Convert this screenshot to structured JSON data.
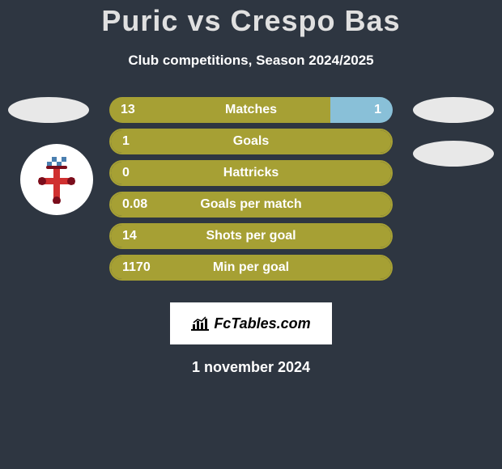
{
  "title": "Puric vs Crespo Bas",
  "subtitle": "Club competitions, Season 2024/2025",
  "date": "1 november 2024",
  "logo_text": "FcTables.com",
  "colors": {
    "background": "#2e3641",
    "left_player": "#a6a034",
    "right_player": "#89c0d8",
    "ellipse": "#e8e8e8",
    "text": "#ffffff",
    "logo_bg": "#ffffff"
  },
  "badge": {
    "cross_color": "#d03030",
    "chequer_colors": [
      "#4a7fb0",
      "#ffffff"
    ],
    "outline": "#7a0d1c"
  },
  "stats": [
    {
      "label": "Matches",
      "left_val": "13",
      "right_val": "1",
      "left_pct": 78,
      "right_pct": 22
    },
    {
      "label": "Goals",
      "left_val": "1",
      "right_val": "",
      "left_pct": 100,
      "right_pct": 0
    },
    {
      "label": "Hattricks",
      "left_val": "0",
      "right_val": "",
      "left_pct": 100,
      "right_pct": 0
    },
    {
      "label": "Goals per match",
      "left_val": "0.08",
      "right_val": "",
      "left_pct": 100,
      "right_pct": 0
    },
    {
      "label": "Shots per goal",
      "left_val": "14",
      "right_val": "",
      "left_pct": 100,
      "right_pct": 0
    },
    {
      "label": "Min per goal",
      "left_val": "1170",
      "right_val": "",
      "left_pct": 100,
      "right_pct": 0
    }
  ]
}
